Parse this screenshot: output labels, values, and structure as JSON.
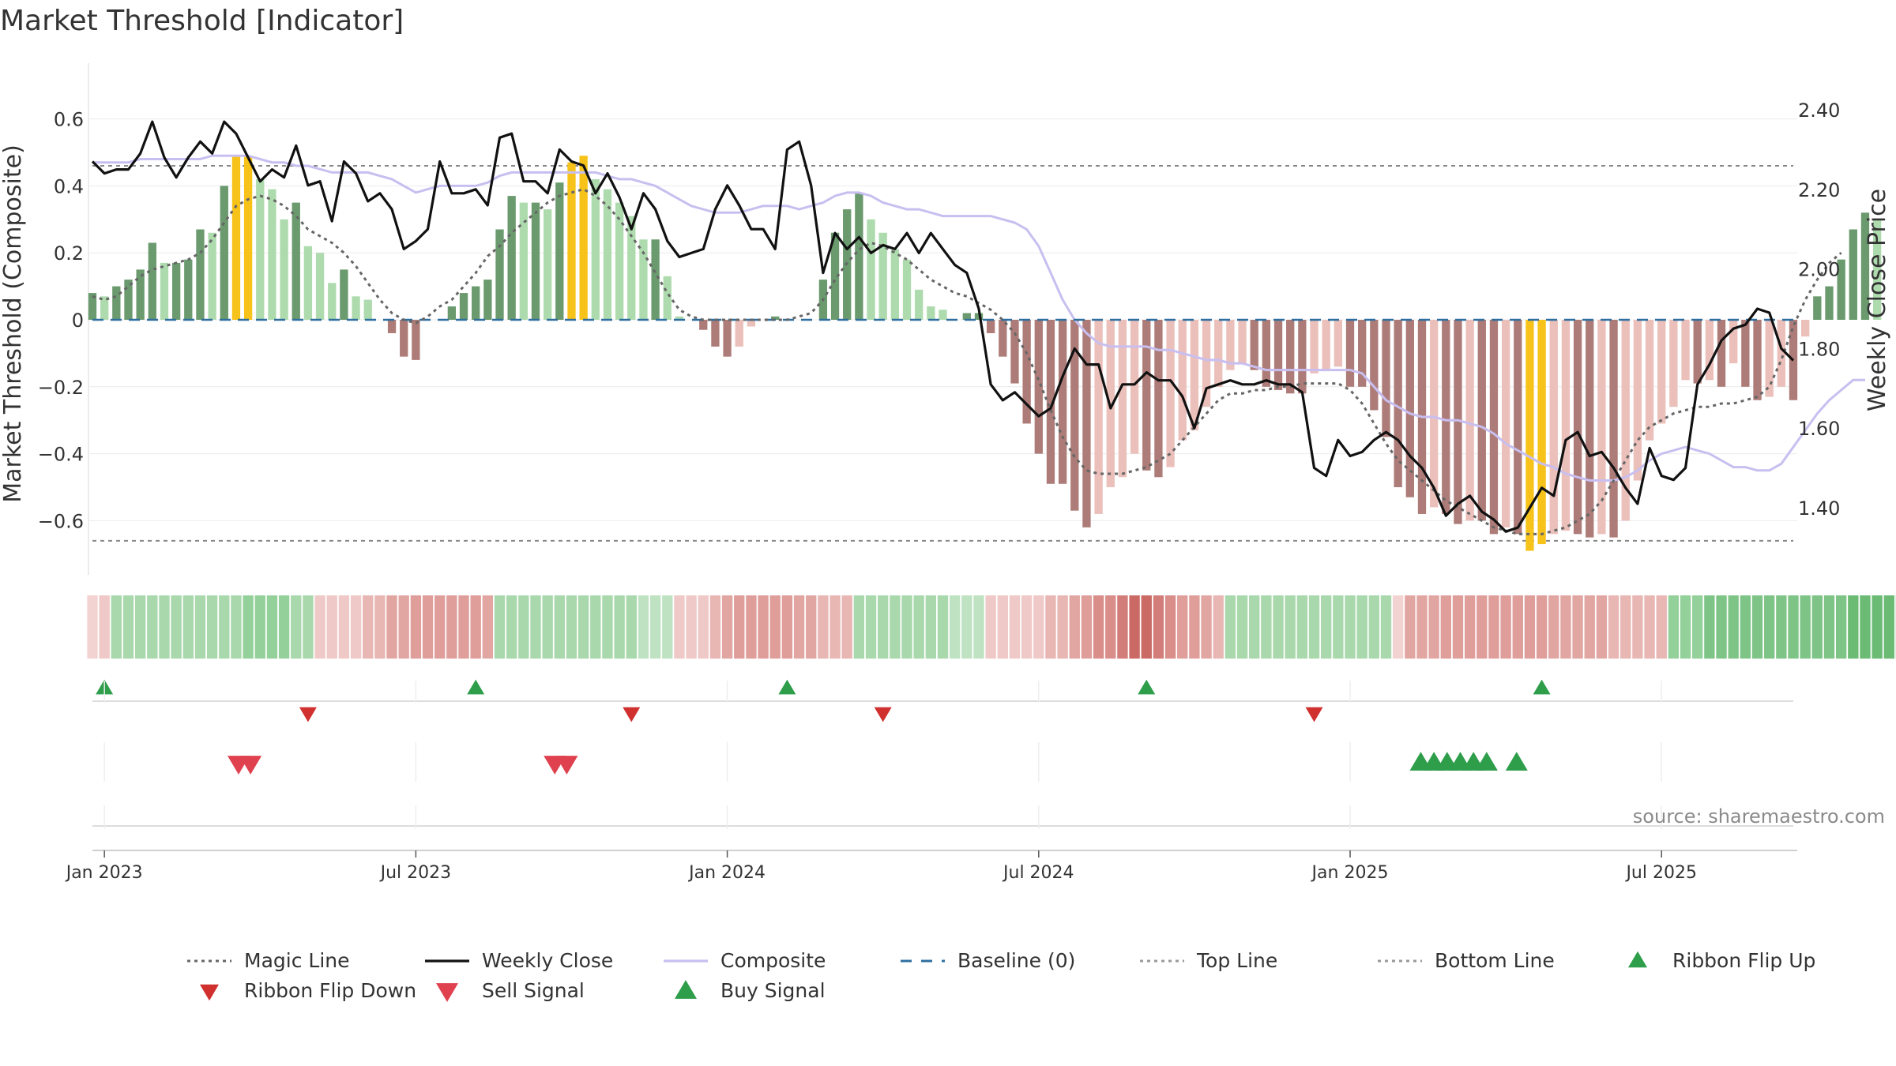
{
  "title": "Market Threshold [Indicator]",
  "source": "source: sharemaestro.com",
  "chart_data": {
    "type": "bar",
    "title": "Market Threshold [Indicator]",
    "ylabel_left": "Market Threshold (Composite)",
    "ylabel_right": "Weekly Close Price",
    "left_ticks": [
      "0.6",
      "0.4",
      "0.2",
      "0",
      "−0.2",
      "−0.4",
      "−0.6"
    ],
    "left_tick_values": [
      0.6,
      0.4,
      0.2,
      0,
      -0.2,
      -0.4,
      -0.6
    ],
    "right_ticks": [
      "2.40",
      "2.20",
      "2.00",
      "1.80",
      "1.60",
      "1.40"
    ],
    "right_tick_values": [
      2.4,
      2.2,
      2.0,
      1.8,
      1.6,
      1.4
    ],
    "ylim_left": [
      -0.78,
      0.76
    ],
    "ylim_right": [
      1.24,
      2.44
    ],
    "x_ticks": [
      "Jan 2023",
      "Jul 2023",
      "Jan 2024",
      "Jul 2024",
      "Jan 2025",
      "Jul 2025"
    ],
    "x_tick_weeks": [
      1,
      27,
      53,
      79,
      105,
      131
    ],
    "top_line": 0.46,
    "bottom_line": -0.66,
    "weeks": 143,
    "bar_values": [
      0.08,
      0.07,
      0.1,
      0.12,
      0.15,
      0.23,
      0.17,
      0.17,
      0.18,
      0.27,
      0.26,
      0.4,
      0.49,
      0.49,
      0.42,
      0.39,
      0.3,
      0.35,
      0.22,
      0.2,
      0.11,
      0.15,
      0.07,
      0.06,
      0.0,
      -0.04,
      -0.11,
      -0.12,
      0.0,
      0.0,
      0.04,
      0.08,
      0.1,
      0.12,
      0.27,
      0.37,
      0.35,
      0.35,
      0.33,
      0.41,
      0.47,
      0.49,
      0.42,
      0.39,
      0.35,
      0.31,
      0.24,
      0.24,
      0.13,
      0.01,
      0.0,
      -0.03,
      -0.08,
      -0.11,
      -0.08,
      -0.02,
      0.0,
      0.01,
      0.0,
      0.0,
      0.0,
      0.12,
      0.26,
      0.33,
      0.38,
      0.3,
      0.26,
      0.21,
      0.18,
      0.09,
      0.04,
      0.03,
      0.0,
      0.02,
      0.02,
      -0.04,
      -0.11,
      -0.19,
      -0.31,
      -0.4,
      -0.49,
      -0.49,
      -0.57,
      -0.62,
      -0.58,
      -0.5,
      -0.47,
      -0.4,
      -0.45,
      -0.47,
      -0.44,
      -0.36,
      -0.33,
      -0.26,
      -0.2,
      -0.15,
      -0.13,
      -0.15,
      -0.2,
      -0.21,
      -0.22,
      -0.22,
      -0.16,
      -0.15,
      -0.14,
      -0.2,
      -0.2,
      -0.27,
      -0.35,
      -0.5,
      -0.53,
      -0.58,
      -0.56,
      -0.58,
      -0.61,
      -0.6,
      -0.6,
      -0.64,
      -0.62,
      -0.64,
      -0.69,
      -0.67,
      -0.64,
      -0.63,
      -0.64,
      -0.65,
      -0.64,
      -0.65,
      -0.6,
      -0.48,
      -0.36,
      -0.31,
      -0.26,
      -0.18,
      -0.19,
      -0.18,
      -0.2,
      -0.13,
      -0.2,
      -0.24,
      -0.23,
      -0.2,
      -0.24,
      -0.05,
      0.07,
      0.1,
      0.18,
      0.27,
      0.32,
      0.3
    ],
    "magic_line": [
      0.07,
      0.06,
      0.07,
      0.1,
      0.13,
      0.15,
      0.16,
      0.17,
      0.18,
      0.2,
      0.24,
      0.29,
      0.34,
      0.36,
      0.37,
      0.36,
      0.34,
      0.31,
      0.27,
      0.25,
      0.23,
      0.2,
      0.16,
      0.11,
      0.06,
      0.02,
      0.0,
      -0.01,
      0.01,
      0.04,
      0.06,
      0.1,
      0.14,
      0.19,
      0.22,
      0.26,
      0.29,
      0.32,
      0.35,
      0.37,
      0.38,
      0.39,
      0.37,
      0.34,
      0.3,
      0.25,
      0.2,
      0.14,
      0.08,
      0.03,
      0.01,
      0.0,
      0.0,
      0.0,
      0.0,
      0.0,
      0.0,
      0.0,
      0.0,
      0.01,
      0.02,
      0.06,
      0.12,
      0.17,
      0.21,
      0.23,
      0.22,
      0.2,
      0.18,
      0.15,
      0.12,
      0.1,
      0.08,
      0.07,
      0.05,
      0.03,
      0.0,
      -0.04,
      -0.1,
      -0.18,
      -0.27,
      -0.35,
      -0.41,
      -0.45,
      -0.46,
      -0.46,
      -0.46,
      -0.45,
      -0.44,
      -0.42,
      -0.4,
      -0.36,
      -0.32,
      -0.28,
      -0.24,
      -0.22,
      -0.22,
      -0.21,
      -0.21,
      -0.2,
      -0.2,
      -0.19,
      -0.19,
      -0.19,
      -0.19,
      -0.21,
      -0.25,
      -0.31,
      -0.37,
      -0.42,
      -0.45,
      -0.48,
      -0.51,
      -0.54,
      -0.56,
      -0.58,
      -0.6,
      -0.62,
      -0.63,
      -0.64,
      -0.64,
      -0.64,
      -0.63,
      -0.62,
      -0.6,
      -0.58,
      -0.54,
      -0.48,
      -0.42,
      -0.36,
      -0.32,
      -0.3,
      -0.28,
      -0.27,
      -0.26,
      -0.26,
      -0.25,
      -0.25,
      -0.24,
      -0.23,
      -0.2,
      -0.12,
      -0.02,
      0.06,
      0.12,
      0.17,
      0.2
    ],
    "composite": [
      0.47,
      0.47,
      0.47,
      0.47,
      0.48,
      0.48,
      0.48,
      0.48,
      0.48,
      0.48,
      0.49,
      0.49,
      0.49,
      0.49,
      0.48,
      0.47,
      0.47,
      0.46,
      0.46,
      0.45,
      0.44,
      0.44,
      0.44,
      0.44,
      0.43,
      0.42,
      0.4,
      0.38,
      0.39,
      0.4,
      0.4,
      0.4,
      0.4,
      0.41,
      0.43,
      0.44,
      0.44,
      0.44,
      0.44,
      0.44,
      0.44,
      0.44,
      0.44,
      0.43,
      0.42,
      0.42,
      0.41,
      0.4,
      0.38,
      0.36,
      0.34,
      0.33,
      0.32,
      0.32,
      0.32,
      0.33,
      0.34,
      0.34,
      0.34,
      0.33,
      0.34,
      0.35,
      0.37,
      0.38,
      0.38,
      0.37,
      0.35,
      0.34,
      0.33,
      0.33,
      0.32,
      0.31,
      0.31,
      0.31,
      0.31,
      0.31,
      0.3,
      0.29,
      0.27,
      0.22,
      0.14,
      0.06,
      0.0,
      -0.04,
      -0.07,
      -0.08,
      -0.08,
      -0.08,
      -0.08,
      -0.09,
      -0.09,
      -0.1,
      -0.11,
      -0.12,
      -0.12,
      -0.13,
      -0.13,
      -0.14,
      -0.15,
      -0.15,
      -0.15,
      -0.15,
      -0.15,
      -0.15,
      -0.15,
      -0.15,
      -0.16,
      -0.2,
      -0.24,
      -0.26,
      -0.28,
      -0.29,
      -0.29,
      -0.3,
      -0.3,
      -0.31,
      -0.32,
      -0.34,
      -0.37,
      -0.39,
      -0.41,
      -0.43,
      -0.44,
      -0.46,
      -0.47,
      -0.48,
      -0.48,
      -0.48,
      -0.47,
      -0.45,
      -0.42,
      -0.4,
      -0.39,
      -0.38,
      -0.39,
      -0.4,
      -0.42,
      -0.44,
      -0.44,
      -0.45,
      -0.45,
      -0.43,
      -0.38,
      -0.33,
      -0.28,
      -0.24,
      -0.21,
      -0.18,
      -0.18
    ],
    "weekly_close": [
      2.27,
      2.24,
      2.25,
      2.25,
      2.29,
      2.37,
      2.28,
      2.23,
      2.28,
      2.32,
      2.29,
      2.37,
      2.34,
      2.28,
      2.22,
      2.25,
      2.23,
      2.31,
      2.21,
      2.22,
      2.12,
      2.27,
      2.24,
      2.17,
      2.19,
      2.15,
      2.05,
      2.07,
      2.1,
      2.27,
      2.19,
      2.19,
      2.2,
      2.16,
      2.33,
      2.34,
      2.22,
      2.22,
      2.19,
      2.3,
      2.27,
      2.26,
      2.19,
      2.24,
      2.18,
      2.1,
      2.19,
      2.15,
      2.07,
      2.03,
      2.04,
      2.05,
      2.15,
      2.21,
      2.16,
      2.1,
      2.1,
      2.05,
      2.3,
      2.32,
      2.21,
      1.99,
      2.09,
      2.05,
      2.08,
      2.04,
      2.06,
      2.05,
      2.09,
      2.04,
      2.09,
      2.05,
      2.01,
      1.99,
      1.9,
      1.71,
      1.67,
      1.69,
      1.66,
      1.63,
      1.65,
      1.73,
      1.8,
      1.76,
      1.76,
      1.65,
      1.71,
      1.71,
      1.74,
      1.72,
      1.72,
      1.68,
      1.6,
      1.7,
      1.71,
      1.72,
      1.71,
      1.71,
      1.72,
      1.71,
      1.71,
      1.69,
      1.5,
      1.48,
      1.57,
      1.53,
      1.54,
      1.57,
      1.59,
      1.57,
      1.53,
      1.5,
      1.45,
      1.38,
      1.41,
      1.43,
      1.39,
      1.37,
      1.34,
      1.35,
      1.4,
      1.45,
      1.43,
      1.57,
      1.59,
      1.53,
      1.54,
      1.5,
      1.45,
      1.41,
      1.55,
      1.48,
      1.47,
      1.5,
      1.71,
      1.76,
      1.82,
      1.85,
      1.86,
      1.9,
      1.89,
      1.8,
      1.77
    ],
    "ribbon_colors": [
      "#f2d3d1",
      "#efc9c7",
      "#a8d8ac",
      "#a8d8ac",
      "#a8d8ac",
      "#a8d8ac",
      "#a8d8ac",
      "#a8d8ac",
      "#a8d8ac",
      "#a8d8ac",
      "#a8d8ac",
      "#a8d8ac",
      "#a8d8ac",
      "#94d09a",
      "#94d09a",
      "#94d09a",
      "#94d09a",
      "#a8d8ac",
      "#a8d8ac",
      "#efc9c7",
      "#efc9c7",
      "#efc9c7",
      "#efc9c7",
      "#e8b6b3",
      "#e8b6b3",
      "#e2a6a2",
      "#e2a6a2",
      "#df9e9a",
      "#df9e9a",
      "#df9e9a",
      "#df9e9a",
      "#df9e9a",
      "#df9e9a",
      "#e2a6a2",
      "#a8d8ac",
      "#a8d8ac",
      "#a8d8ac",
      "#a8d8ac",
      "#a8d8ac",
      "#a8d8ac",
      "#a8d8ac",
      "#a8d8ac",
      "#a8d8ac",
      "#a8d8ac",
      "#a8d8ac",
      "#a8d8ac",
      "#bfe3c2",
      "#bfe3c2",
      "#bfe3c2",
      "#efc9c7",
      "#efc9c7",
      "#efc9c7",
      "#e8b6b3",
      "#e2a6a2",
      "#df9e9a",
      "#df9e9a",
      "#df9e9a",
      "#df9e9a",
      "#df9e9a",
      "#e2a6a2",
      "#e2a6a2",
      "#e8b6b3",
      "#e8b6b3",
      "#e8b6b3",
      "#a8d8ac",
      "#a8d8ac",
      "#a8d8ac",
      "#a8d8ac",
      "#a8d8ac",
      "#a8d8ac",
      "#a8d8ac",
      "#a8d8ac",
      "#bfe3c2",
      "#bfe3c2",
      "#bfe3c2",
      "#efc9c7",
      "#efc9c7",
      "#efc9c7",
      "#efc9c7",
      "#efc9c7",
      "#e8b6b3",
      "#e8b6b3",
      "#e2a6a2",
      "#df9e9a",
      "#d98e8a",
      "#d98e8a",
      "#d27d79",
      "#cb6a65",
      "#cb6a65",
      "#d27d79",
      "#d98e8a",
      "#df9e9a",
      "#df9e9a",
      "#e2a6a2",
      "#e8b6b3",
      "#a8d8ac",
      "#a8d8ac",
      "#a8d8ac",
      "#a8d8ac",
      "#a8d8ac",
      "#a8d8ac",
      "#a8d8ac",
      "#a8d8ac",
      "#a8d8ac",
      "#a8d8ac",
      "#a8d8ac",
      "#a8d8ac",
      "#a8d8ac",
      "#a8d8ac",
      "#f2d3d1",
      "#e2a6a2",
      "#e2a6a2",
      "#e2a6a2",
      "#df9e9a",
      "#df9e9a",
      "#df9e9a",
      "#df9e9a",
      "#df9e9a",
      "#df9e9a",
      "#df9e9a",
      "#df9e9a",
      "#df9e9a",
      "#e2a6a2",
      "#e2a6a2",
      "#e2a6a2",
      "#e2a6a2",
      "#e2a6a2",
      "#e8b6b3",
      "#e8b6b3",
      "#e8b6b3",
      "#e8b6b3",
      "#e8b6b3",
      "#94d09a",
      "#94d09a",
      "#94d09a",
      "#7fc487",
      "#7fc487",
      "#7fc487",
      "#7fc487",
      "#7fc487",
      "#7fc487",
      "#7fc487",
      "#7fc487",
      "#7fc487",
      "#7fc487",
      "#7fc487",
      "#7fc487",
      "#6bbb75",
      "#6bbb75",
      "#6bbb75",
      "#6bbb75",
      "#5ab266",
      "#5ab266",
      "#5ab266"
    ],
    "ribbon_flip_up_weeks": [
      1,
      32,
      58,
      88,
      121
    ],
    "ribbon_flip_down_weeks": [
      18,
      45,
      66,
      102
    ],
    "sell_signal_weeks": [
      12.2,
      13.2,
      38.6,
      39.6
    ],
    "buy_signal_weeks": [
      110.9,
      112.0,
      113.1,
      114.2,
      115.3,
      116.4,
      118.9
    ],
    "legend": [
      {
        "label": "Magic Line",
        "style": "dotted",
        "color": "#666666"
      },
      {
        "label": "Weekly Close",
        "style": "solid",
        "color": "#111111"
      },
      {
        "label": "Composite",
        "style": "solid",
        "color": "#c8bff0"
      },
      {
        "label": "Baseline (0)",
        "style": "dashed",
        "color": "#2f6fa0"
      },
      {
        "label": "Top Line",
        "style": "dotted",
        "color": "#999999"
      },
      {
        "label": "Bottom Line",
        "style": "dotted",
        "color": "#999999"
      },
      {
        "label": "Ribbon Flip Up",
        "style": "triangle-up",
        "color": "#2e9e4b"
      },
      {
        "label": "Ribbon Flip Down",
        "style": "triangle-down",
        "color": "#d0302e"
      },
      {
        "label": "Sell Signal",
        "style": "triangle-down",
        "color": "#e0414f"
      },
      {
        "label": "Buy Signal",
        "style": "triangle-up",
        "color": "#2e9e4b"
      }
    ],
    "colors": {
      "pos_dark": "#6a9a6e",
      "pos_light": "#aedbae",
      "neg_dark": "#ad7c78",
      "neg_light": "#ebbfba",
      "extreme": "#f7c31a",
      "magic": "#666666",
      "close": "#111111",
      "composite": "#c8bff0",
      "baseline": "#2f6fa0",
      "flip_up": "#2e9e4b",
      "flip_down": "#d0302e",
      "sell": "#e0414f",
      "buy": "#2e9e4b"
    }
  }
}
